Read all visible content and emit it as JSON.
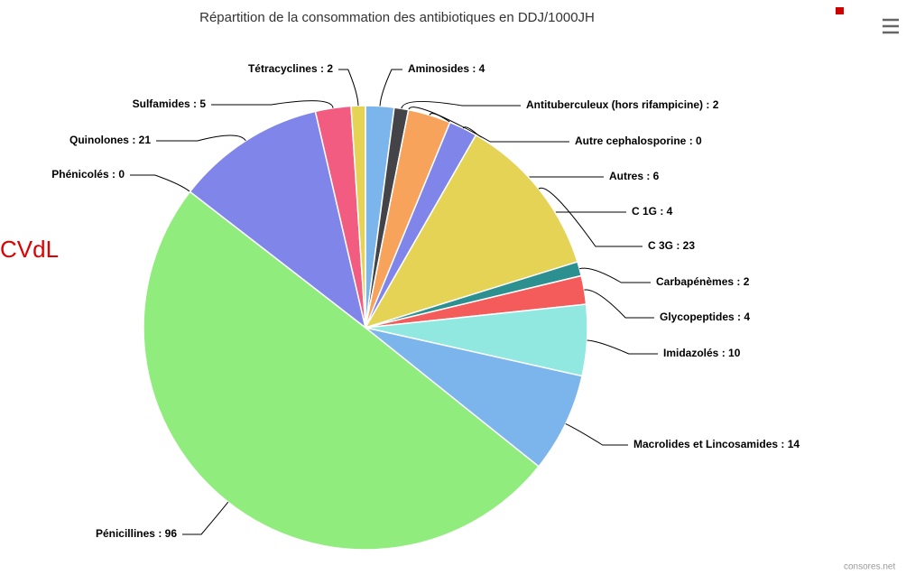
{
  "chart_data": {
    "type": "pie",
    "title": "Répartition de la consommation des antibiotiques en DDJ/1000JH",
    "annotation": "CVdL",
    "credits": "consores.net",
    "values": [
      4,
      2,
      0,
      6,
      4,
      23,
      2,
      4,
      10,
      14,
      96,
      0,
      21,
      5,
      2
    ],
    "value_labels": [
      "Aminosides : 4",
      "Antituberculeux (hors rifampicine) : 2",
      "Autre cephalosporine : 0",
      "Autres : 6",
      "C 1G : 4",
      "C 3G : 23",
      "Carbapénèmes : 2",
      "Glycopeptides : 4",
      "Imidazolés : 10",
      "Macrolides et Lincosamides : 14",
      "Pénicillines : 96",
      "Phénicolés : 0",
      "Quinolones : 21",
      "Sulfamides : 5",
      "Tétracyclines : 2"
    ],
    "colors": [
      "#7cb5ec",
      "#434348",
      "#90ed7d",
      "#f7a35c",
      "#8085e9",
      "#e4d354",
      "#2b908f",
      "#f45b5b",
      "#91e8e1",
      "#7cb5ec",
      "#90ed7d",
      "#f7a35c",
      "#8085e9",
      "#f15c80",
      "#e4d354"
    ]
  }
}
